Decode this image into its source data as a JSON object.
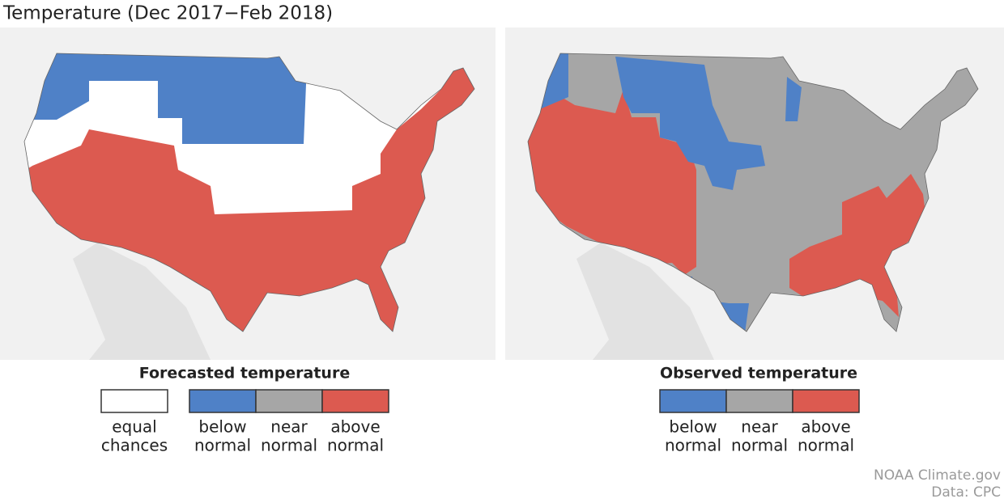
{
  "title": "Temperature (Dec 2017−Feb 2018)",
  "panels": [
    {
      "title": "Forecasted temperature",
      "legend": [
        {
          "label": [
            "equal",
            "chances"
          ],
          "color": "#ffffff"
        },
        {
          "label": [
            "below",
            "normal"
          ],
          "color": "#4f81c7"
        },
        {
          "label": [
            "near",
            "normal"
          ],
          "color": "#a6a6a6"
        },
        {
          "label": [
            "above",
            "normal"
          ],
          "color": "#dc5a50"
        }
      ]
    },
    {
      "title": "Observed temperature",
      "legend": [
        {
          "label": [
            "below",
            "normal"
          ],
          "color": "#4f81c7"
        },
        {
          "label": [
            "near",
            "normal"
          ],
          "color": "#a6a6a6"
        },
        {
          "label": [
            "above",
            "normal"
          ],
          "color": "#dc5a50"
        }
      ]
    }
  ],
  "credits": [
    "NOAA Climate.gov",
    "Data: CPC"
  ]
}
